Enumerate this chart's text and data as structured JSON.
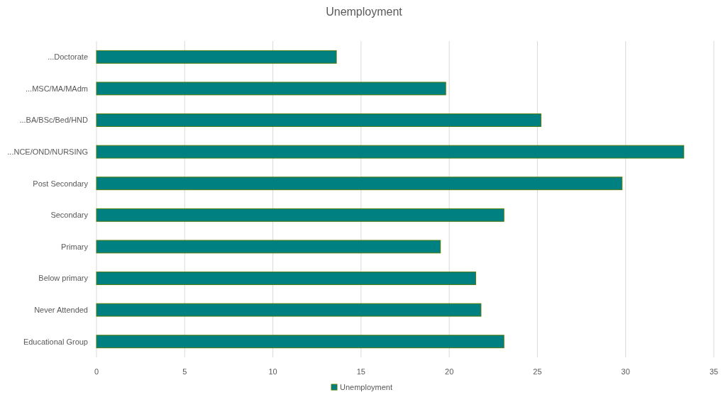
{
  "chart_data": {
    "type": "bar",
    "title": "Unemployment",
    "orientation": "horizontal",
    "categories": [
      "...Doctorate",
      "...MSC/MA/MAdm",
      "...BA/BSc/Bed/HND",
      "...NCE/OND/NURSING",
      "Post Secondary",
      "Secondary",
      "Primary",
      "Below primary",
      "Never Attended",
      "Educational Group"
    ],
    "series": [
      {
        "name": "Unemployment",
        "color": "#008080",
        "values": [
          13.6,
          19.8,
          25.2,
          33.3,
          29.8,
          23.1,
          19.5,
          21.5,
          21.8,
          23.1
        ]
      }
    ],
    "xlim": [
      0,
      35
    ],
    "xticks": [
      0,
      5,
      10,
      15,
      20,
      25,
      30,
      35
    ],
    "grid": "x",
    "legend": "bottom"
  }
}
